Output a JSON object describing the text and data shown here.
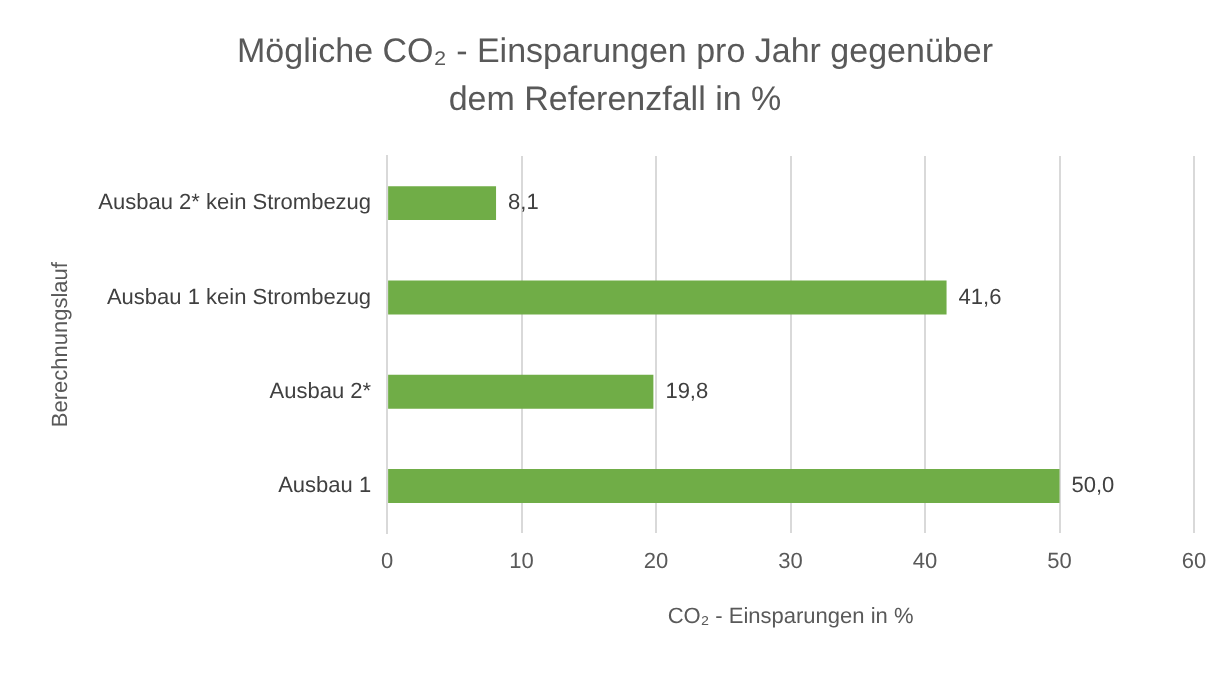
{
  "chart_data": {
    "type": "bar",
    "orientation": "horizontal",
    "title": "Mögliche CO₂ - Einsparungen pro Jahr gegenüber dem Referenzfall in %",
    "xlabel": "CO₂ - Einsparungen in %",
    "ylabel": "Berechnungslauf",
    "categories": [
      "Ausbau 2* kein Strombezug",
      "Ausbau 1 kein Strombezug",
      "Ausbau 2*",
      "Ausbau 1"
    ],
    "values": [
      8.1,
      41.6,
      19.8,
      50.0
    ],
    "value_labels": [
      "8,1",
      "41,6",
      "19,8",
      "50,0"
    ],
    "color": "#70ad47",
    "xlim": [
      0,
      60
    ],
    "xticks": [
      0,
      10,
      20,
      30,
      40,
      50,
      60
    ],
    "grid": "x",
    "legend": false
  }
}
